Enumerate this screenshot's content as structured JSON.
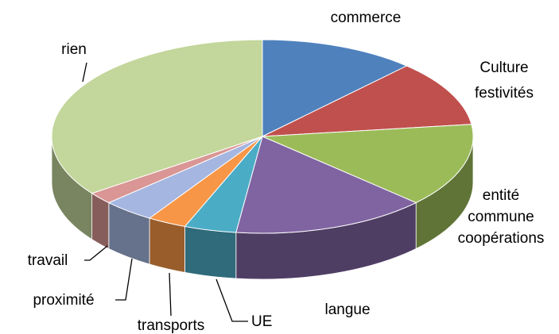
{
  "chart_data": {
    "type": "pie3d",
    "categories": [
      "commerce",
      "Culture festivités",
      "entité commune coopérations",
      "langue",
      "UE",
      "transports",
      "proximité",
      "travail",
      "rien"
    ],
    "values": [
      12,
      11,
      14,
      15,
      4,
      3,
      4,
      2,
      35
    ],
    "colors": [
      "#4f81bd",
      "#c0504d",
      "#9bbb59",
      "#8064a2",
      "#4bacc6",
      "#f79646",
      "#a5b6e0",
      "#d99694",
      "#c3d69b"
    ]
  }
}
